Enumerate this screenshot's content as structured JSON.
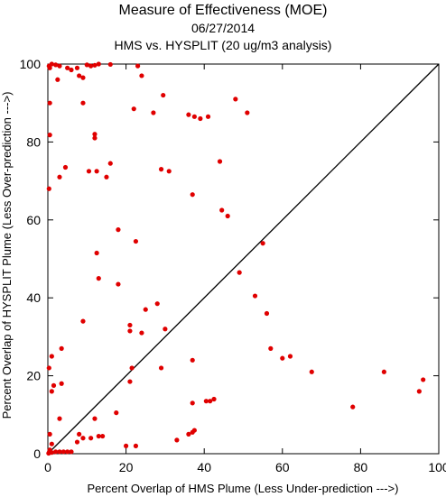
{
  "chart_data": {
    "type": "scatter",
    "title": "Measure of Effectiveness (MOE)",
    "subtitle": "06/27/2014",
    "subtitle2": "HMS vs. HYSPLIT  (20 ug/m3 analysis)",
    "xlabel": "Percent Overlap of HMS Plume (Less Under-prediction --->)",
    "ylabel": "Percent Overlap of HYSPLIT Plume (Less Over-prediction --->)",
    "xlim": [
      0,
      100
    ],
    "ylim": [
      0,
      100
    ],
    "x_ticks": [
      0,
      20,
      40,
      60,
      80,
      100
    ],
    "y_ticks": [
      0,
      20,
      40,
      60,
      80,
      100
    ],
    "grid": false,
    "reference_line": "1:1 diagonal",
    "point_color": "#e00000",
    "points": [
      [
        0.3,
        99.5
      ],
      [
        0.5,
        99
      ],
      [
        1,
        100
      ],
      [
        2,
        99.8
      ],
      [
        3,
        99.5
      ],
      [
        5,
        99
      ],
      [
        6,
        98.5
      ],
      [
        7.5,
        99
      ],
      [
        8,
        97
      ],
      [
        9,
        96.5
      ],
      [
        10,
        99.8
      ],
      [
        11,
        99.5
      ],
      [
        12,
        99.7
      ],
      [
        13,
        100
      ],
      [
        16,
        99.9
      ],
      [
        23,
        99.5
      ],
      [
        24,
        97
      ],
      [
        2.5,
        96
      ],
      [
        0.5,
        90
      ],
      [
        9,
        90
      ],
      [
        22,
        88.5
      ],
      [
        27,
        87.5
      ],
      [
        29.5,
        92
      ],
      [
        36,
        87
      ],
      [
        37.5,
        86.5
      ],
      [
        39,
        86
      ],
      [
        41,
        86.5
      ],
      [
        48,
        91
      ],
      [
        51,
        87.5
      ],
      [
        0.5,
        81.8
      ],
      [
        12,
        82
      ],
      [
        12,
        81
      ],
      [
        4.5,
        73.5
      ],
      [
        10.5,
        72.5
      ],
      [
        12.5,
        72.5
      ],
      [
        15,
        71
      ],
      [
        16,
        74.5
      ],
      [
        29,
        73
      ],
      [
        31,
        72.5
      ],
      [
        44,
        75
      ],
      [
        3,
        71
      ],
      [
        0.3,
        68
      ],
      [
        37,
        66.5
      ],
      [
        44.5,
        62.5
      ],
      [
        46,
        61
      ],
      [
        18,
        57.5
      ],
      [
        22.5,
        54.5
      ],
      [
        12.5,
        51.5
      ],
      [
        55,
        54
      ],
      [
        18,
        43.5
      ],
      [
        13,
        45
      ],
      [
        25,
        37
      ],
      [
        28,
        38.5
      ],
      [
        49,
        46.5
      ],
      [
        53,
        40.5
      ],
      [
        56,
        36
      ],
      [
        21,
        33
      ],
      [
        21,
        31.5
      ],
      [
        24,
        31
      ],
      [
        30,
        32
      ],
      [
        9,
        34
      ],
      [
        57,
        27
      ],
      [
        60,
        24.5
      ],
      [
        62,
        25
      ],
      [
        67.5,
        21
      ],
      [
        86,
        21
      ],
      [
        96,
        19
      ],
      [
        95,
        16
      ],
      [
        0.3,
        22
      ],
      [
        1,
        25
      ],
      [
        3.5,
        27
      ],
      [
        1,
        16
      ],
      [
        1.5,
        17.5
      ],
      [
        3.5,
        18
      ],
      [
        21.5,
        22
      ],
      [
        21,
        18.5
      ],
      [
        29,
        22
      ],
      [
        37,
        24
      ],
      [
        37,
        13
      ],
      [
        40.5,
        13.5
      ],
      [
        41.5,
        13.5
      ],
      [
        42.5,
        14
      ],
      [
        17.5,
        10.5
      ],
      [
        12,
        9
      ],
      [
        3,
        9
      ],
      [
        78,
        12
      ],
      [
        0.5,
        5
      ],
      [
        1,
        2.5
      ],
      [
        0.5,
        1
      ],
      [
        1,
        0.3
      ],
      [
        2,
        0.5
      ],
      [
        3,
        0.5
      ],
      [
        4,
        0.5
      ],
      [
        5,
        0.5
      ],
      [
        6,
        0.5
      ],
      [
        7.5,
        3
      ],
      [
        8,
        5
      ],
      [
        9,
        4
      ],
      [
        11,
        4
      ],
      [
        13,
        4.5
      ],
      [
        14,
        4.5
      ],
      [
        20,
        2
      ],
      [
        22.5,
        2
      ],
      [
        33,
        3.5
      ],
      [
        36,
        5
      ],
      [
        37,
        5.5
      ],
      [
        37.5,
        6
      ],
      [
        0.3,
        0.3
      ],
      [
        0.2,
        0.1
      ]
    ]
  }
}
